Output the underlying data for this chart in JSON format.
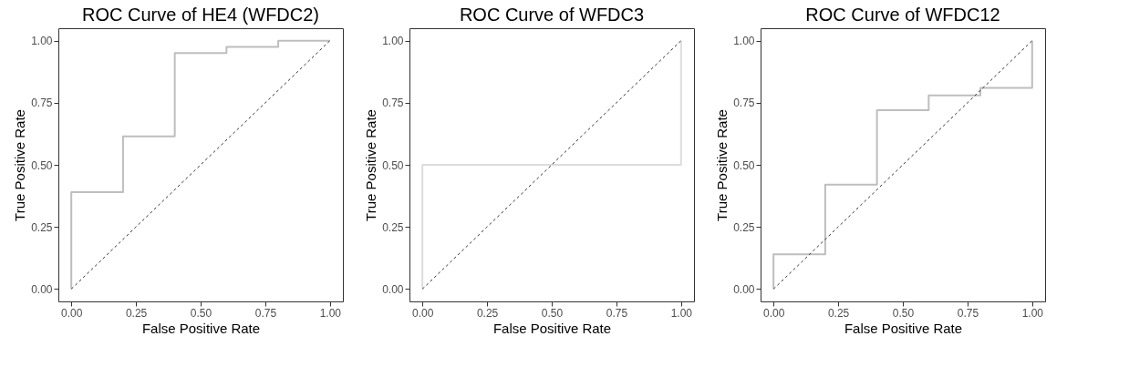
{
  "chart_data": [
    {
      "type": "step",
      "title": "ROC Curve of HE4 (WFDC2)",
      "xlabel": "False Positive Rate",
      "ylabel": "True Positive Rate",
      "xlim": [
        -0.05,
        1.05
      ],
      "ylim": [
        -0.05,
        1.05
      ],
      "xticks": [
        {
          "value": 0,
          "label": "0.00"
        },
        {
          "value": 0.25,
          "label": "0.25"
        },
        {
          "value": 0.5,
          "label": "0.50"
        },
        {
          "value": 0.75,
          "label": "0.75"
        },
        {
          "value": 1,
          "label": "1.00"
        }
      ],
      "yticks": [
        {
          "value": 0,
          "label": "0.00"
        },
        {
          "value": 0.25,
          "label": "0.25"
        },
        {
          "value": 0.5,
          "label": "0.50"
        },
        {
          "value": 0.75,
          "label": "0.75"
        },
        {
          "value": 1,
          "label": "1.00"
        }
      ],
      "grid": false,
      "series": [
        {
          "color": "#bebebe",
          "x": [
            0,
            0,
            0.2,
            0.4,
            0.6,
            0.8,
            1
          ],
          "values": [
            0,
            0.39,
            0.615,
            0.95,
            0.975,
            1,
            1
          ]
        },
        {
          "type": "line",
          "color": "#333333",
          "line_style": "dashed",
          "x": [
            0,
            1
          ],
          "values": [
            0,
            1
          ]
        }
      ]
    },
    {
      "type": "step",
      "title": "ROC Curve of WFDC3",
      "xlabel": "False Positive Rate",
      "ylabel": "True Positive Rate",
      "xlim": [
        -0.05,
        1.05
      ],
      "ylim": [
        -0.05,
        1.05
      ],
      "xticks": [
        {
          "value": 0,
          "label": "0.00"
        },
        {
          "value": 0.25,
          "label": "0.25"
        },
        {
          "value": 0.5,
          "label": "0.50"
        },
        {
          "value": 0.75,
          "label": "0.75"
        },
        {
          "value": 1,
          "label": "1.00"
        }
      ],
      "yticks": [
        {
          "value": 0,
          "label": "0.00"
        },
        {
          "value": 0.25,
          "label": "0.25"
        },
        {
          "value": 0.5,
          "label": "0.50"
        },
        {
          "value": 0.75,
          "label": "0.75"
        },
        {
          "value": 1,
          "label": "1.00"
        }
      ],
      "grid": false,
      "series": [
        {
          "color": "#dcdcdc",
          "x": [
            0,
            0,
            1,
            1
          ],
          "values": [
            0,
            0.5,
            0.5,
            1
          ]
        },
        {
          "type": "line",
          "color": "#333333",
          "line_style": "dashed",
          "x": [
            0,
            1
          ],
          "values": [
            0,
            1
          ]
        }
      ]
    },
    {
      "type": "step",
      "title": "ROC Curve of WFDC12",
      "xlabel": "False Positive Rate",
      "ylabel": "True Positive Rate",
      "xlim": [
        -0.05,
        1.05
      ],
      "ylim": [
        -0.05,
        1.05
      ],
      "xticks": [
        {
          "value": 0,
          "label": "0.00"
        },
        {
          "value": 0.25,
          "label": "0.25"
        },
        {
          "value": 0.5,
          "label": "0.50"
        },
        {
          "value": 0.75,
          "label": "0.75"
        },
        {
          "value": 1,
          "label": "1.00"
        }
      ],
      "yticks": [
        {
          "value": 0,
          "label": "0.00"
        },
        {
          "value": 0.25,
          "label": "0.25"
        },
        {
          "value": 0.5,
          "label": "0.50"
        },
        {
          "value": 0.75,
          "label": "0.75"
        },
        {
          "value": 1,
          "label": "1.00"
        }
      ],
      "grid": false,
      "series": [
        {
          "color": "#bebebe",
          "x": [
            0,
            0,
            0.2,
            0.4,
            0.6,
            0.8,
            1,
            1
          ],
          "values": [
            0,
            0.14,
            0.42,
            0.72,
            0.78,
            0.81,
            0.81,
            1
          ]
        },
        {
          "type": "line",
          "color": "#333333",
          "line_style": "dashed",
          "x": [
            0,
            1
          ],
          "values": [
            0,
            1
          ]
        }
      ]
    }
  ]
}
